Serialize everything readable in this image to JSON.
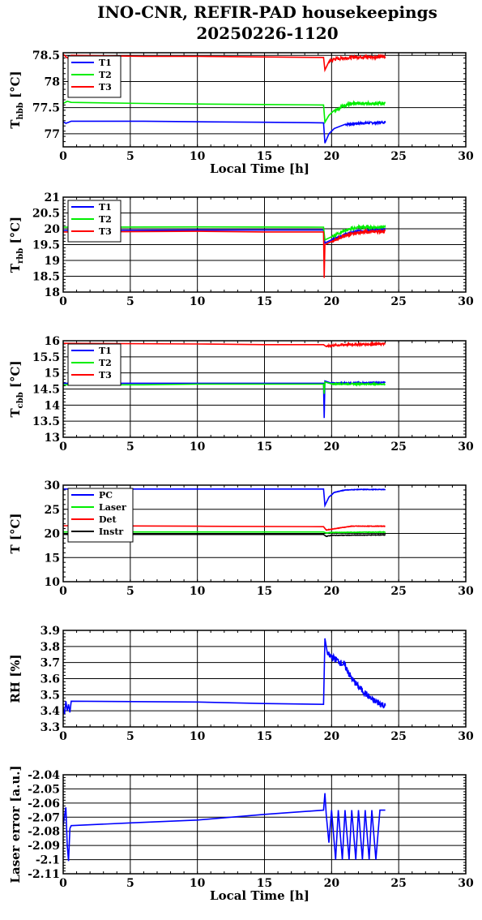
{
  "title": {
    "line1": "INO-CNR, REFIR-PAD housekeepings",
    "line2": "20250226-1120"
  },
  "chart_data": [
    {
      "type": "line",
      "id": "hbb",
      "ylabel_main": "T",
      "ylabel_sub": "hbb",
      "ylabel_unit": "[°C]",
      "xlabel": "Local Time [h]",
      "xlim": [
        0,
        30
      ],
      "ylim": [
        76.75,
        78.55
      ],
      "xticks": [
        0,
        5,
        10,
        15,
        20,
        25,
        30
      ],
      "xtick_labels": [
        "0",
        "5",
        "10",
        "15",
        "20",
        "25",
        "30"
      ],
      "yticks": [
        77,
        77.5,
        78,
        78.5
      ],
      "ytick_labels": [
        "77",
        "77.5",
        "78",
        "78.5"
      ],
      "grid": true,
      "legend": "top-left",
      "series": [
        {
          "name": "T1",
          "color": "#0000ff",
          "points": [
            [
              0,
              77.23
            ],
            [
              0.2,
              77.2
            ],
            [
              0.4,
              77.22
            ],
            [
              0.6,
              77.24
            ],
            [
              6,
              77.24
            ],
            [
              10,
              77.23
            ],
            [
              15,
              77.22
            ],
            [
              19.4,
              77.21
            ],
            [
              19.5,
              76.82
            ],
            [
              19.8,
              77.0
            ],
            [
              20.2,
              77.1
            ],
            [
              21,
              77.18
            ],
            [
              22,
              77.2
            ],
            [
              24,
              77.22
            ]
          ],
          "noise": 0.02,
          "noise_from": 20.5
        },
        {
          "name": "T2",
          "color": "#00ee00",
          "points": [
            [
              0,
              77.58
            ],
            [
              0.3,
              77.62
            ],
            [
              0.6,
              77.6
            ],
            [
              6,
              77.58
            ],
            [
              10,
              77.57
            ],
            [
              15,
              77.56
            ],
            [
              19.4,
              77.55
            ],
            [
              19.5,
              77.22
            ],
            [
              19.8,
              77.35
            ],
            [
              20.2,
              77.45
            ],
            [
              21,
              77.55
            ],
            [
              22,
              77.58
            ],
            [
              24,
              77.58
            ]
          ],
          "noise": 0.03,
          "noise_from": 20.2
        },
        {
          "name": "T3",
          "color": "#ff0000",
          "points": [
            [
              0,
              78.52
            ],
            [
              0.3,
              78.45
            ],
            [
              0.6,
              78.5
            ],
            [
              6,
              78.48
            ],
            [
              10,
              78.48
            ],
            [
              15,
              78.47
            ],
            [
              19.4,
              78.46
            ],
            [
              19.5,
              78.22
            ],
            [
              19.8,
              78.38
            ],
            [
              20.2,
              78.43
            ],
            [
              21,
              78.45
            ],
            [
              22,
              78.47
            ],
            [
              24,
              78.47
            ]
          ],
          "noise": 0.03,
          "noise_from": 19.6
        }
      ]
    },
    {
      "type": "line",
      "id": "rbb",
      "ylabel_main": "T",
      "ylabel_sub": "rbb",
      "ylabel_unit": "[°C]",
      "xlabel": "",
      "xlim": [
        0,
        30
      ],
      "ylim": [
        18,
        21
      ],
      "xticks": [
        0,
        5,
        10,
        15,
        20,
        25,
        30
      ],
      "xtick_labels": [
        "0",
        "5",
        "10",
        "15",
        "20",
        "25",
        "30"
      ],
      "yticks": [
        18,
        18.5,
        19,
        19.5,
        20,
        20.5,
        21
      ],
      "ytick_labels": [
        "18",
        "18.5",
        "19",
        "19.5",
        "20",
        "20.5",
        "21"
      ],
      "grid": true,
      "legend": "top-left",
      "series": [
        {
          "name": "T1",
          "color": "#0000ff",
          "points": [
            [
              0,
              19.95
            ],
            [
              10,
              19.96
            ],
            [
              19.4,
              19.96
            ],
            [
              19.5,
              19.55
            ],
            [
              20,
              19.65
            ],
            [
              21,
              19.82
            ],
            [
              22,
              19.93
            ],
            [
              24,
              19.98
            ]
          ],
          "noise": 0.04,
          "noise_from": 19.6
        },
        {
          "name": "T2",
          "color": "#00ee00",
          "points": [
            [
              0,
              20.05
            ],
            [
              10,
              20.06
            ],
            [
              19.4,
              20.05
            ],
            [
              19.5,
              19.65
            ],
            [
              20,
              19.75
            ],
            [
              21,
              19.95
            ],
            [
              22,
              20.05
            ],
            [
              24,
              20.05
            ]
          ],
          "noise": 0.04,
          "noise_from": 19.6
        },
        {
          "name": "T3",
          "color": "#ff0000",
          "points": [
            [
              0,
              19.9
            ],
            [
              10,
              19.92
            ],
            [
              15,
              19.9
            ],
            [
              19.4,
              19.9
            ],
            [
              19.45,
              18.45
            ],
            [
              19.5,
              19.5
            ],
            [
              20,
              19.6
            ],
            [
              21,
              19.78
            ],
            [
              22,
              19.88
            ],
            [
              24,
              19.93
            ]
          ],
          "noise": 0.04,
          "noise_from": 19.6
        }
      ]
    },
    {
      "type": "line",
      "id": "cbb",
      "ylabel_main": "T",
      "ylabel_sub": "cbb",
      "ylabel_unit": "[°C]",
      "xlabel": "",
      "xlim": [
        0,
        30
      ],
      "ylim": [
        13,
        16
      ],
      "xticks": [
        0,
        5,
        10,
        15,
        20,
        25,
        30
      ],
      "xtick_labels": [
        "0",
        "5",
        "10",
        "15",
        "20",
        "25",
        "30"
      ],
      "yticks": [
        13,
        13.5,
        14,
        14.5,
        15,
        15.5,
        16
      ],
      "ytick_labels": [
        "13",
        "13.5",
        "14",
        "14.5",
        "15",
        "15.5",
        "16"
      ],
      "grid": true,
      "legend": "top-left",
      "series": [
        {
          "name": "T1",
          "color": "#0000ff",
          "points": [
            [
              0,
              14.68
            ],
            [
              6,
              14.68
            ],
            [
              10,
              14.68
            ],
            [
              19.4,
              14.68
            ],
            [
              19.45,
              13.6
            ],
            [
              19.5,
              14.75
            ],
            [
              20,
              14.68
            ],
            [
              24,
              14.7
            ]
          ],
          "noise": 0.02,
          "noise_from": 19.6
        },
        {
          "name": "T2",
          "color": "#00ee00",
          "points": [
            [
              0,
              14.63
            ],
            [
              6,
              14.63
            ],
            [
              10,
              14.65
            ],
            [
              19.4,
              14.65
            ],
            [
              19.45,
              14.35
            ],
            [
              19.5,
              14.72
            ],
            [
              20,
              14.66
            ],
            [
              24,
              14.65
            ]
          ],
          "noise": 0.02,
          "noise_from": 19.6
        },
        {
          "name": "T3",
          "color": "#ff0000",
          "points": [
            [
              0,
              15.92
            ],
            [
              10,
              15.9
            ],
            [
              15,
              15.88
            ],
            [
              19.4,
              15.88
            ],
            [
              19.6,
              15.82
            ],
            [
              20,
              15.85
            ],
            [
              21,
              15.88
            ],
            [
              24,
              15.9
            ]
          ],
          "noise": 0.03,
          "noise_from": 19.6
        }
      ]
    },
    {
      "type": "line",
      "id": "temps",
      "ylabel_main": "T [°C]",
      "ylabel_sub": "",
      "ylabel_unit": "",
      "xlabel": "",
      "xlim": [
        0,
        30
      ],
      "ylim": [
        10,
        30
      ],
      "xticks": [
        0,
        5,
        10,
        15,
        20,
        25,
        30
      ],
      "xtick_labels": [
        "0",
        "5",
        "10",
        "15",
        "20",
        "25",
        "30"
      ],
      "yticks": [
        10,
        15,
        20,
        25,
        30
      ],
      "ytick_labels": [
        "10",
        "15",
        "20",
        "25",
        "30"
      ],
      "grid": true,
      "legend": "top-left",
      "series": [
        {
          "name": "PC",
          "color": "#0000ff",
          "points": [
            [
              0,
              29.2
            ],
            [
              10,
              29.2
            ],
            [
              19.4,
              29.2
            ],
            [
              19.5,
              25.8
            ],
            [
              19.8,
              27.5
            ],
            [
              20.2,
              28.5
            ],
            [
              21,
              29.0
            ],
            [
              22,
              29.1
            ],
            [
              24,
              29.1
            ]
          ],
          "noise": 0.05,
          "noise_from": 19.6
        },
        {
          "name": "Laser",
          "color": "#00ee00",
          "points": [
            [
              0,
              20.3
            ],
            [
              10,
              20.3
            ],
            [
              19.4,
              20.3
            ],
            [
              19.6,
              20.1
            ],
            [
              20,
              20.2
            ],
            [
              24,
              20.3
            ]
          ],
          "noise": 0.05,
          "noise_from": 19.6
        },
        {
          "name": "Det",
          "color": "#ff0000",
          "points": [
            [
              0,
              21.6
            ],
            [
              10,
              21.5
            ],
            [
              19.4,
              21.4
            ],
            [
              19.6,
              20.7
            ],
            [
              20.5,
              21.1
            ],
            [
              21.5,
              21.5
            ],
            [
              24,
              21.5
            ]
          ],
          "noise": 0.05,
          "noise_from": 19.6
        },
        {
          "name": "Instr",
          "color": "#000000",
          "points": [
            [
              0,
              19.8
            ],
            [
              10,
              19.8
            ],
            [
              19.4,
              19.8
            ],
            [
              19.6,
              19.4
            ],
            [
              20,
              19.6
            ],
            [
              24,
              19.7
            ]
          ],
          "noise": 0.05,
          "noise_from": 19.6
        }
      ]
    },
    {
      "type": "line",
      "id": "rh",
      "ylabel_main": "RH [%]",
      "ylabel_sub": "",
      "ylabel_unit": "",
      "xlabel": "",
      "xlim": [
        0,
        30
      ],
      "ylim": [
        3.3,
        3.9
      ],
      "xticks": [
        0,
        5,
        10,
        15,
        20,
        25,
        30
      ],
      "xtick_labels": [
        "0",
        "5",
        "10",
        "15",
        "20",
        "25",
        "30"
      ],
      "yticks": [
        3.3,
        3.4,
        3.5,
        3.6,
        3.7,
        3.8,
        3.9
      ],
      "ytick_labels": [
        "3.3",
        "3.4",
        "3.5",
        "3.6",
        "3.7",
        "3.8",
        "3.9"
      ],
      "grid": true,
      "legend": "none",
      "series": [
        {
          "name": "",
          "color": "#0000ff",
          "points": [
            [
              0,
              3.42
            ],
            [
              0.1,
              3.38
            ],
            [
              0.2,
              3.46
            ],
            [
              0.3,
              3.4
            ],
            [
              0.4,
              3.44
            ],
            [
              0.5,
              3.39
            ],
            [
              0.6,
              3.46
            ],
            [
              10,
              3.455
            ],
            [
              15,
              3.445
            ],
            [
              19.4,
              3.44
            ],
            [
              19.5,
              3.85
            ],
            [
              19.7,
              3.75
            ],
            [
              20.5,
              3.71
            ],
            [
              21,
              3.68
            ],
            [
              21.5,
              3.6
            ],
            [
              22,
              3.55
            ],
            [
              23,
              3.47
            ],
            [
              24,
              3.43
            ]
          ],
          "noise": 0.02,
          "noise_from": 19.6
        }
      ]
    },
    {
      "type": "line",
      "id": "laser",
      "ylabel_main": "Laser error [a.u.]",
      "ylabel_sub": "",
      "ylabel_unit": "",
      "xlabel": "Local Time [h]",
      "xlim": [
        0,
        30
      ],
      "ylim": [
        -2.11,
        -2.04
      ],
      "xticks": [
        0,
        5,
        10,
        15,
        20,
        25,
        30
      ],
      "xtick_labels": [
        "0",
        "5",
        "10",
        "15",
        "20",
        "25",
        "30"
      ],
      "yticks": [
        -2.11,
        -2.1,
        -2.09,
        -2.08,
        -2.07,
        -2.06,
        -2.05,
        -2.04
      ],
      "ytick_labels": [
        "-2.11",
        "-2.1",
        "-2.09",
        "-2.08",
        "-2.07",
        "-2.06",
        "-2.05",
        "-2.04"
      ],
      "grid": true,
      "legend": "none",
      "series": [
        {
          "name": "",
          "color": "#0000ff",
          "points": [
            [
              0,
              -2.076
            ],
            [
              0.2,
              -2.063
            ],
            [
              0.3,
              -2.09
            ],
            [
              0.4,
              -2.101
            ],
            [
              0.5,
              -2.078
            ],
            [
              0.6,
              -2.076
            ],
            [
              5,
              -2.074
            ],
            [
              10,
              -2.072
            ],
            [
              15,
              -2.068
            ],
            [
              19.4,
              -2.065
            ],
            [
              19.5,
              -2.053
            ],
            [
              19.6,
              -2.068
            ],
            [
              19.8,
              -2.088
            ],
            [
              20,
              -2.065
            ],
            [
              20.3,
              -2.1
            ],
            [
              20.5,
              -2.065
            ],
            [
              20.8,
              -2.1
            ],
            [
              21,
              -2.065
            ],
            [
              21.3,
              -2.1
            ],
            [
              21.5,
              -2.065
            ],
            [
              21.8,
              -2.1
            ],
            [
              22,
              -2.065
            ],
            [
              22.3,
              -2.1
            ],
            [
              22.5,
              -2.065
            ],
            [
              22.8,
              -2.1
            ],
            [
              23,
              -2.065
            ],
            [
              23.3,
              -2.1
            ],
            [
              23.6,
              -2.065
            ],
            [
              24,
              -2.065
            ]
          ],
          "noise": 0.0,
          "noise_from": 99
        }
      ]
    }
  ]
}
